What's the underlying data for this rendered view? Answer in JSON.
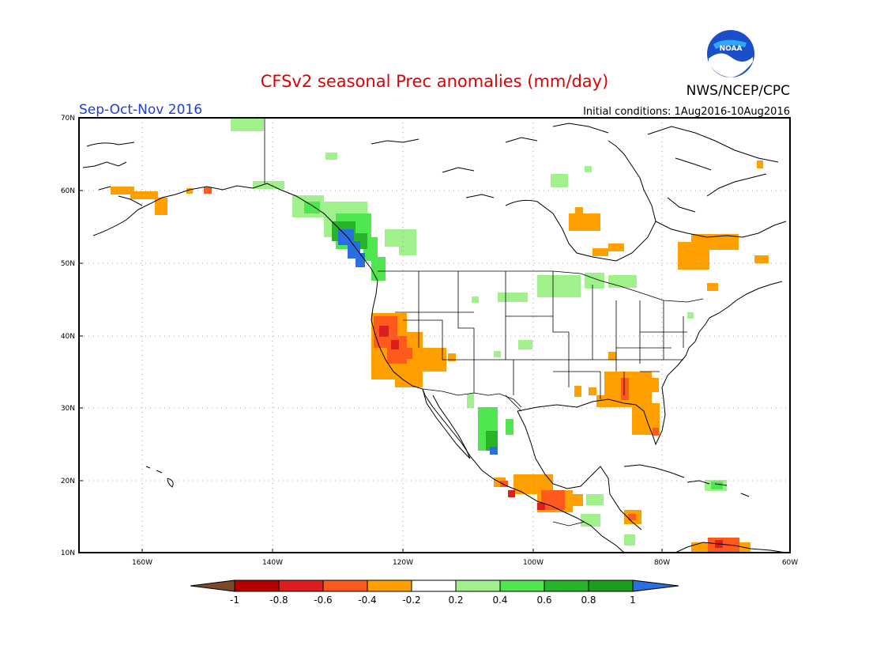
{
  "header": {
    "title": "CFSv2 seasonal Prec anomalies (mm/day)",
    "season": "Sep-Oct-Nov 2016",
    "agency": "NWS/NCEP/CPC",
    "initial_conditions": "Initial conditions: 1Aug2016-10Aug2016",
    "logo_text": "NOAA"
  },
  "map": {
    "lon_range": [
      -172,
      -60
    ],
    "lat_range": [
      10,
      70
    ],
    "lon_ticks": [
      "160W",
      "140W",
      "120W",
      "100W",
      "80W",
      "60W"
    ],
    "lat_ticks": [
      "70N",
      "60N",
      "50N",
      "40N",
      "30N",
      "20N",
      "10N"
    ],
    "grid": true,
    "anomaly_regions": [
      {
        "region": "Pacific Northwest coast",
        "category": "wet",
        "level": "0.2 to 1"
      },
      {
        "region": "California and Great Basin",
        "category": "dry",
        "level": "-0.6 to -0.2"
      },
      {
        "region": "Southeastern US / Florida",
        "category": "dry",
        "level": "-0.4 to -0.2"
      },
      {
        "region": "Southern Mexico",
        "category": "dry",
        "level": "-0.8 to -0.2"
      },
      {
        "region": "Northwest Mexico (Sierra Madre)",
        "category": "wet",
        "level": "0.2 to 1"
      },
      {
        "region": "Quebec / Labrador",
        "category": "dry",
        "level": "-0.4 to -0.2"
      },
      {
        "region": "Southern Alaska",
        "category": "dry",
        "level": "-0.6 to -0.2"
      }
    ]
  },
  "colorbar": {
    "labels": [
      "-1",
      "-0.8",
      "-0.6",
      "-0.4",
      "-0.2",
      "0.2",
      "0.4",
      "0.6",
      "0.8",
      "1"
    ],
    "colors": {
      "lt_-1": "#7a4a2a",
      "-1_-0.8": "#b40000",
      "-0.8_-0.6": "#dc1e1e",
      "-0.6_-0.4": "#ff5a1e",
      "-0.4_-0.2": "#ffa000",
      "-0.2_0.2": "#ffffff",
      "0.2_0.4": "#a0f08c",
      "0.4_0.6": "#50e650",
      "0.6_0.8": "#28b428",
      "0.8_1": "#1e9e1e",
      "gt_1": "#2a6ee0"
    }
  }
}
